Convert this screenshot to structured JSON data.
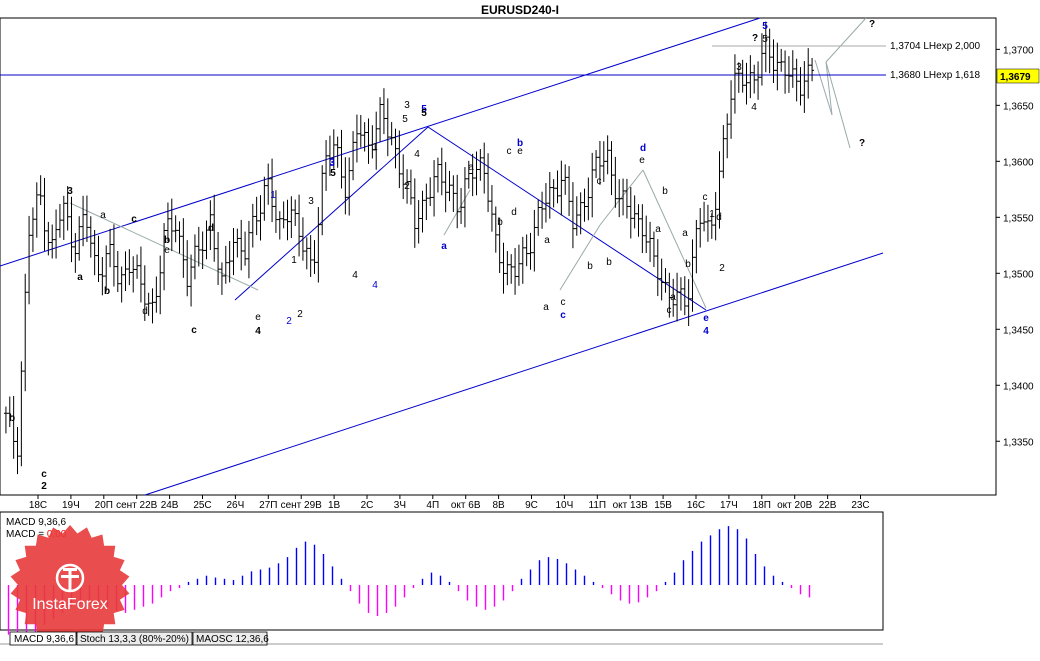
{
  "chart_data": {
    "type": "candlestick",
    "title": "EURUSD240-I",
    "y_ticks": [
      "1,3700",
      "1,3650",
      "1,3600",
      "1,3550",
      "1,3500",
      "1,3450",
      "1,3400",
      "1,3350"
    ],
    "ylim": [
      1.3302,
      1.3728
    ],
    "current_price": "1,3679",
    "x_tick_labels": [
      "18С",
      "19Ч",
      "20П",
      "сент 22В",
      "24В",
      "25С",
      "26Ч",
      "27П",
      "сент 29В",
      "1В",
      "2С",
      "3Ч",
      "4П",
      "окт 6В",
      "8В",
      "9С",
      "10Ч",
      "11П",
      "окт 13В",
      "15В",
      "16С",
      "17Ч",
      "18П",
      "окт 20В",
      "22В",
      "23С"
    ],
    "levels": [
      {
        "label": "1,3704 LHexp 2,000",
        "value": 1.3704
      },
      {
        "label": "1,3680 LHexp 1,618",
        "value": 1.368
      }
    ],
    "series_path": [
      1.337,
      1.3345,
      1.3535,
      1.357,
      1.352,
      1.356,
      1.3525,
      1.355,
      1.35,
      1.352,
      1.349,
      1.3515,
      1.348,
      1.347,
      1.3535,
      1.3545,
      1.3495,
      1.352,
      1.355,
      1.3485,
      1.3535,
      1.3515,
      1.355,
      1.3585,
      1.3535,
      1.3565,
      1.3525,
      1.3505,
      1.3595,
      1.3615,
      1.3575,
      1.363,
      1.3615,
      1.364,
      1.362,
      1.3585,
      1.3545,
      1.357,
      1.3585,
      1.358,
      1.3555,
      1.3595,
      1.36,
      1.353,
      1.3505,
      1.35,
      1.3525,
      1.3555,
      1.357,
      1.359,
      1.354,
      1.357,
      1.3595,
      1.3605,
      1.3565,
      1.3555,
      1.3545,
      1.351,
      1.349,
      1.3475,
      1.3475,
      1.3555,
      1.353,
      1.3605,
      1.3665,
      1.368,
      1.367,
      1.3705,
      1.3685,
      1.3675,
      1.3672,
      1.3679
    ],
    "wave_labels": [
      {
        "t": "b",
        "c": "#000"
      },
      {
        "t": "c",
        "c": "#000"
      },
      {
        "t": "2",
        "c": "#000"
      },
      {
        "t": "3",
        "c": "#000"
      },
      {
        "t": "a",
        "c": "#000"
      },
      {
        "t": "a",
        "c": "#000"
      },
      {
        "t": "b",
        "c": "#000"
      },
      {
        "t": "c",
        "c": "#000"
      },
      {
        "t": "b",
        "c": "#000"
      },
      {
        "t": "e",
        "c": "#000"
      },
      {
        "t": "d",
        "c": "#000"
      },
      {
        "t": "c",
        "c": "#000"
      },
      {
        "t": "d",
        "c": "#000"
      },
      {
        "t": "e",
        "c": "#000"
      },
      {
        "t": "4",
        "c": "#000"
      },
      {
        "t": "1",
        "c": "#00c"
      },
      {
        "t": "1",
        "c": "#000"
      },
      {
        "t": "2",
        "c": "#00c"
      },
      {
        "t": "2",
        "c": "#000"
      },
      {
        "t": "3",
        "c": "#000"
      },
      {
        "t": "3",
        "c": "#00c"
      },
      {
        "t": "5",
        "c": "#000"
      },
      {
        "t": "4",
        "c": "#000"
      },
      {
        "t": "4",
        "c": "#00c"
      },
      {
        "t": "1",
        "c": "#000"
      },
      {
        "t": "3",
        "c": "#00c"
      },
      {
        "t": "5",
        "c": "#000"
      },
      {
        "t": "5",
        "c": "#00c"
      },
      {
        "t": "3",
        "c": "#000"
      },
      {
        "t": "5",
        "c": "#000"
      },
      {
        "t": "4",
        "c": "#000"
      },
      {
        "t": "2",
        "c": "#000"
      },
      {
        "t": "a",
        "c": "#00c"
      },
      {
        "t": "a",
        "c": "#000"
      },
      {
        "t": "b",
        "c": "#00c"
      },
      {
        "t": "c",
        "c": "#000"
      },
      {
        "t": "e",
        "c": "#000"
      },
      {
        "t": "d",
        "c": "#000"
      },
      {
        "t": "b",
        "c": "#000"
      },
      {
        "t": "a",
        "c": "#000"
      },
      {
        "t": "b",
        "c": "#000"
      },
      {
        "t": "c",
        "c": "#000"
      },
      {
        "t": "a",
        "c": "#000"
      },
      {
        "t": "c",
        "c": "#00c"
      },
      {
        "t": "c",
        "c": "#000"
      },
      {
        "t": "b",
        "c": "#000"
      },
      {
        "t": "a",
        "c": "#000"
      },
      {
        "t": "d",
        "c": "#00c"
      },
      {
        "t": "e",
        "c": "#000"
      },
      {
        "t": "b",
        "c": "#000"
      },
      {
        "t": "a",
        "c": "#000"
      },
      {
        "t": "a",
        "c": "#000"
      },
      {
        "t": "c",
        "c": "#000"
      },
      {
        "t": "b",
        "c": "#000"
      },
      {
        "t": "d",
        "c": "#000"
      },
      {
        "t": "c",
        "c": "#000"
      },
      {
        "t": "e",
        "c": "#00c"
      },
      {
        "t": "4",
        "c": "#00c"
      },
      {
        "t": "1",
        "c": "#000"
      },
      {
        "t": "2",
        "c": "#000"
      },
      {
        "t": "3",
        "c": "#000"
      },
      {
        "t": "4",
        "c": "#000"
      },
      {
        "t": "?",
        "c": "#000"
      },
      {
        "t": "5",
        "c": "#000"
      },
      {
        "t": "5",
        "c": "#00c"
      },
      {
        "t": "?",
        "c": "#000"
      },
      {
        "t": "?",
        "c": "#000"
      }
    ],
    "bold_labels": [
      1,
      1,
      1,
      1,
      1,
      0,
      1,
      1,
      1,
      0,
      0,
      1,
      1,
      0,
      1,
      0,
      0,
      0,
      0,
      0,
      0,
      1,
      0,
      0,
      0,
      0,
      0,
      1,
      0,
      1,
      0,
      0,
      1,
      0,
      1,
      0,
      0,
      0,
      0,
      0,
      0,
      0,
      0,
      1,
      0,
      0,
      0,
      1,
      0,
      0,
      0,
      0,
      0,
      0,
      0,
      0,
      1,
      1,
      0,
      0,
      0,
      0,
      1,
      0,
      1,
      1,
      1
    ],
    "macd_indicator": {
      "label1": "MACD 9,36,6",
      "label2_prefix": "MACD = ",
      "label2_value": "0,00",
      "histogram": [
        -0.8,
        -0.9,
        -0.85,
        -0.75,
        -0.65,
        -0.55,
        -0.45,
        -0.35,
        -0.3,
        -0.28,
        -0.3,
        -0.35,
        -0.42,
        -0.45,
        -0.4,
        -0.35,
        -0.3,
        -0.2,
        -0.1,
        -0.05,
        0.05,
        0.1,
        0.15,
        0.12,
        0.1,
        0.08,
        0.15,
        0.22,
        0.25,
        0.28,
        0.35,
        0.45,
        0.6,
        0.7,
        0.65,
        0.5,
        0.3,
        0.1,
        -0.1,
        -0.3,
        -0.45,
        -0.5,
        -0.45,
        -0.35,
        -0.2,
        -0.05,
        0.1,
        0.2,
        0.15,
        0.05,
        -0.1,
        -0.25,
        -0.35,
        -0.4,
        -0.35,
        -0.25,
        -0.1,
        0.1,
        0.25,
        0.4,
        0.45,
        0.42,
        0.35,
        0.25,
        0.15,
        0.05,
        -0.05,
        -0.15,
        -0.25,
        -0.3,
        -0.28,
        -0.2,
        -0.1,
        0.05,
        0.2,
        0.4,
        0.55,
        0.7,
        0.8,
        0.9,
        0.95,
        0.9,
        0.75,
        0.5,
        0.3,
        0.15,
        0.05,
        -0.05,
        -0.15,
        -0.2
      ]
    }
  },
  "tabs": [
    "MACD 9,36,6",
    "Stoch 13,3,3 (80%-20%)",
    "MAOSC 12,36,6"
  ],
  "watermark": "InstaForex",
  "colors": {
    "trend_line": "#0000cc",
    "wave_blue": "#0000cc",
    "macd_pos": "#0000ff",
    "macd_neg": "#ff00ff",
    "price_tag": "#ffff00",
    "logo": "#e83a3a"
  }
}
